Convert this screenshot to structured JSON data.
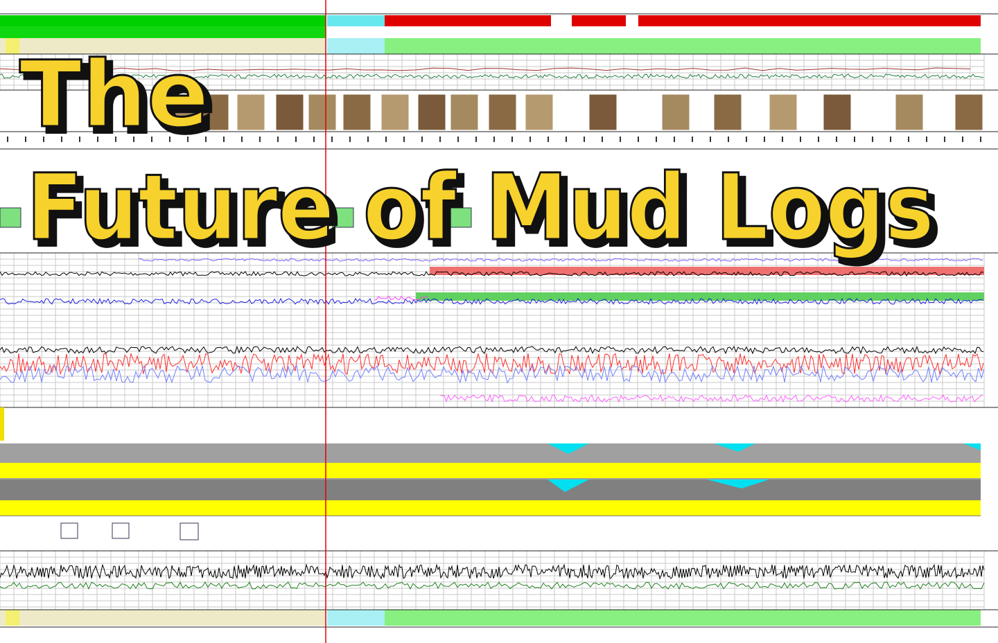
{
  "title": {
    "line1": "The",
    "line2": "Future of Mud Logs"
  }
}
